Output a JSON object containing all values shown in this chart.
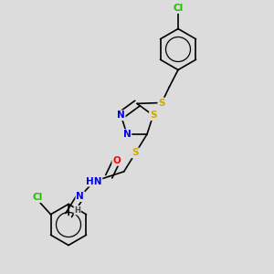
{
  "background_color": "#dcdcdc",
  "atom_colors": {
    "C": "#000000",
    "N": "#0000ee",
    "S": "#ccaa00",
    "O": "#ff0000",
    "Cl": "#22bb00",
    "H": "#444444"
  },
  "bond_color": "#000000",
  "bond_width": 1.2,
  "font_size_atom": 7.5,
  "font_size_small": 6.0,
  "figsize": [
    3.0,
    3.0
  ],
  "dpi": 100
}
